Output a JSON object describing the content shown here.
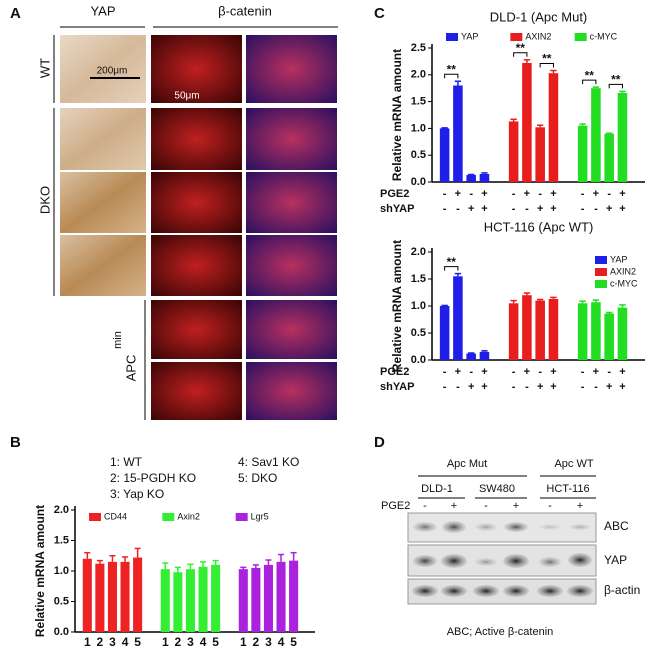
{
  "panel_labels": [
    "A",
    "B",
    "C",
    "D"
  ],
  "panel_a": {
    "columns": [
      "YAP",
      "β-catenin"
    ],
    "rows": [
      "WT",
      "DKO",
      "APC"
    ],
    "superscript": "min",
    "scale_bars": [
      "200μm",
      "50μm"
    ]
  },
  "panel_d": {
    "groups": [
      "Apc Mut",
      "Apc WT"
    ],
    "cell_lines": [
      "DLD-1",
      "SW480",
      "HCT-116"
    ],
    "treatment": "PGE2",
    "signs": [
      "-",
      "+",
      "-",
      "+",
      "-",
      "+"
    ],
    "bands": [
      "ABC",
      "YAP",
      "β-actin"
    ],
    "caption": "ABC; Active β-catenin"
  },
  "chart_data": [
    {
      "type": "bar",
      "title": "DLD-1 (Apc Mut)",
      "ylabel": "Relative mRNA amount",
      "ylim": [
        0,
        2.5
      ],
      "yticks": [
        {
          "value": 0,
          "label": "0.0"
        },
        0.5,
        {
          "value": 1,
          "label": "1.0"
        },
        1.5,
        {
          "value": 2,
          "label": "2.0"
        },
        2.5
      ],
      "legend": "top",
      "series": [
        {
          "name": "YAP",
          "color": "#1f1fe8",
          "values": [
            1.0,
            1.8,
            0.13,
            0.15
          ],
          "errors": [
            0.01,
            0.08,
            0.01,
            0.02
          ]
        },
        {
          "name": "AXIN2",
          "color": "#e81e1e",
          "values": [
            1.13,
            2.22,
            1.02,
            2.03
          ],
          "errors": [
            0.04,
            0.06,
            0.04,
            0.05
          ]
        },
        {
          "name": "c-MYC",
          "color": "#22dd22",
          "values": [
            1.05,
            1.75,
            0.9,
            1.66
          ],
          "errors": [
            0.03,
            0.02,
            0.01,
            0.03
          ]
        }
      ],
      "rows": [
        {
          "name": "PGE2",
          "values": [
            "-",
            "+",
            "-",
            "+",
            "-",
            "+",
            "-",
            "+",
            "-",
            "+",
            "-",
            "+"
          ]
        },
        {
          "name": "shYAP",
          "values": [
            "-",
            "-",
            "+",
            "+",
            "-",
            "-",
            "+",
            "+",
            "-",
            "-",
            "+",
            "+"
          ]
        }
      ],
      "annotations": [
        {
          "text": "**",
          "bars": [
            0,
            1
          ]
        },
        {
          "text": "**",
          "bars": [
            4,
            5
          ]
        },
        {
          "text": "**",
          "bars": [
            6,
            7
          ]
        },
        {
          "text": "**",
          "bars": [
            8,
            9
          ]
        },
        {
          "text": "**",
          "bars": [
            10,
            11
          ]
        }
      ]
    },
    {
      "type": "bar",
      "title": "HCT-116 (Apc WT)",
      "ylabel": "Relative mRNA amount",
      "ylim": [
        0,
        2.0
      ],
      "yticks": [
        {
          "value": 0,
          "label": "0.0"
        },
        0.5,
        {
          "value": 1,
          "label": "1.0"
        },
        1.5,
        {
          "value": 2,
          "label": "2.0"
        }
      ],
      "legend": "right",
      "series": [
        {
          "name": "YAP",
          "color": "#1f1fe8",
          "values": [
            1.0,
            1.55,
            0.12,
            0.15
          ],
          "errors": [
            0.01,
            0.05,
            0.01,
            0.02
          ]
        },
        {
          "name": "AXIN2",
          "color": "#e81e1e",
          "values": [
            1.05,
            1.2,
            1.1,
            1.13
          ],
          "errors": [
            0.05,
            0.04,
            0.02,
            0.03
          ]
        },
        {
          "name": "c-MYC",
          "color": "#22dd22",
          "values": [
            1.05,
            1.07,
            0.86,
            0.97
          ],
          "errors": [
            0.04,
            0.04,
            0.02,
            0.05
          ]
        }
      ],
      "rows": [
        {
          "name": "PGE2",
          "values": [
            "-",
            "+",
            "-",
            "+",
            "-",
            "+",
            "-",
            "+",
            "-",
            "+",
            "-",
            "+"
          ]
        },
        {
          "name": "shYAP",
          "values": [
            "-",
            "-",
            "+",
            "+",
            "-",
            "-",
            "+",
            "+",
            "-",
            "-",
            "+",
            "+"
          ]
        }
      ],
      "annotations": [
        {
          "text": "**",
          "bars": [
            0,
            1
          ]
        }
      ]
    },
    {
      "type": "bar",
      "ylabel": "Relative mRNA amount",
      "key": [
        "1: WT",
        "2: 15-PGDH KO",
        "3: Yap KO",
        "4: Sav1 KO",
        "5: DKO"
      ],
      "categories": [
        "1",
        "2",
        "3",
        "4",
        "5"
      ],
      "ylim": [
        0,
        2.0
      ],
      "yticks": [
        {
          "value": 0,
          "label": "0.0"
        },
        0.5,
        {
          "value": 1,
          "label": "1.0"
        },
        1.5,
        {
          "value": 2,
          "label": "2.0"
        }
      ],
      "legend": "top",
      "series": [
        {
          "name": "CD44",
          "color": "#ee2222",
          "values": [
            1.2,
            1.12,
            1.15,
            1.15,
            1.22
          ],
          "errors": [
            0.1,
            0.05,
            0.1,
            0.08,
            0.15
          ]
        },
        {
          "name": "Axin2",
          "color": "#33ee33",
          "values": [
            1.03,
            0.98,
            1.03,
            1.07,
            1.1
          ],
          "errors": [
            0.1,
            0.08,
            0.08,
            0.08,
            0.07
          ]
        },
        {
          "name": "Lgr5",
          "color": "#aa22dd",
          "values": [
            1.03,
            1.05,
            1.1,
            1.15,
            1.17
          ],
          "errors": [
            0.03,
            0.05,
            0.08,
            0.12,
            0.13
          ]
        }
      ]
    }
  ]
}
